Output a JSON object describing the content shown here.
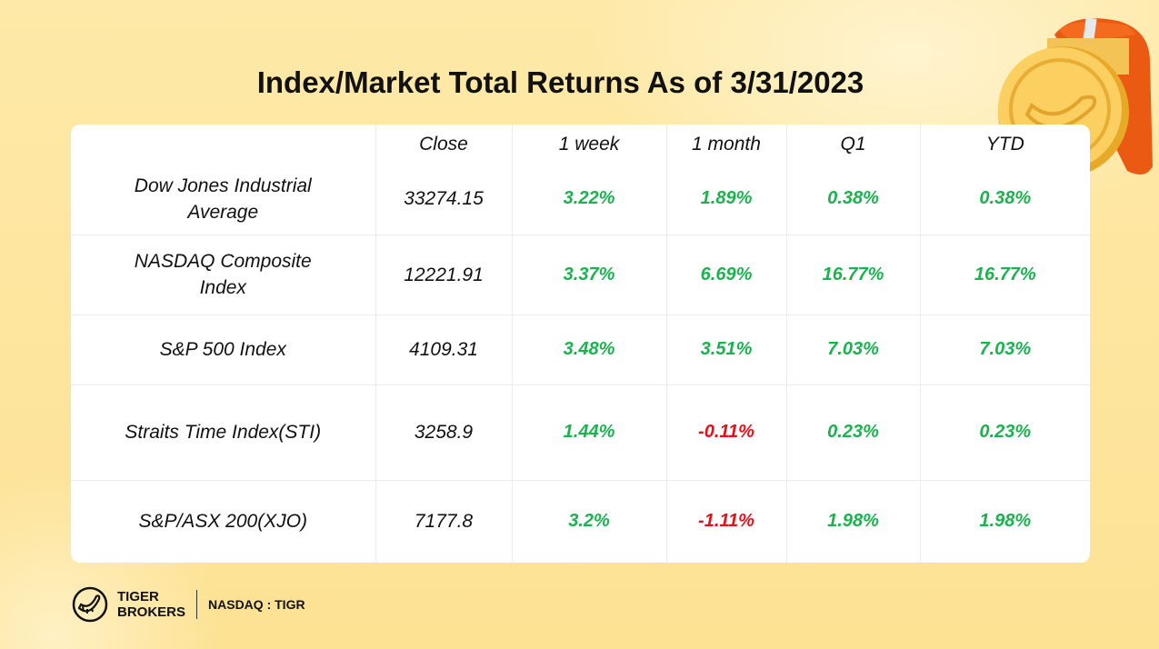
{
  "title": "Index/Market Total Returns As of 3/31/2023",
  "table": {
    "headers": [
      "",
      "Close",
      "1 week",
      "1 month",
      "Q1",
      "YTD"
    ],
    "rows": [
      {
        "name": "Dow Jones Industrial Average",
        "close": "33274.15",
        "week": "3.22%",
        "month": "1.89%",
        "q1": "0.38%",
        "ytd": "0.38%"
      },
      {
        "name": "NASDAQ Composite Index",
        "close": "12221.91",
        "week": "3.37%",
        "month": "6.69%",
        "q1": "16.77%",
        "ytd": "16.77%"
      },
      {
        "name": "S&P 500 Index",
        "close": "4109.31",
        "week": "3.48%",
        "month": "3.51%",
        "q1": "7.03%",
        "ytd": "7.03%"
      },
      {
        "name": "Straits Time Index(STI)",
        "close": "3258.9",
        "week": "1.44%",
        "month": "-0.11%",
        "q1": "0.23%",
        "ytd": "0.23%"
      },
      {
        "name": "S&P/ASX 200(XJO)",
        "close": "7177.8",
        "week": "3.2%",
        "month": "-1.11%",
        "q1": "1.98%",
        "ytd": "1.98%"
      }
    ]
  },
  "footer": {
    "brand_line1": "TIGER",
    "brand_line2": "BROKERS",
    "ticker": "NASDAQ : TIGR",
    "logo_icon": "tiger-tail-logo"
  },
  "colors": {
    "positive": "#1bb24f",
    "negative": "#e5101a",
    "background": "#fde69a"
  }
}
